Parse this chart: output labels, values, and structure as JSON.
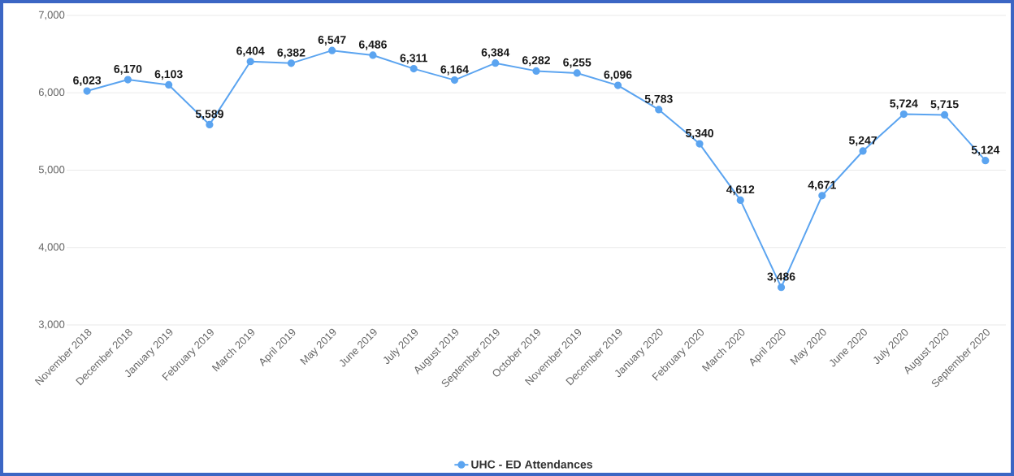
{
  "chart_data": {
    "type": "line",
    "categories": [
      "November 2018",
      "December 2018",
      "January 2019",
      "February 2019",
      "March 2019",
      "April 2019",
      "May 2019",
      "June 2019",
      "July 2019",
      "August 2019",
      "September 2019",
      "October 2019",
      "November 2019",
      "December 2019",
      "January 2020",
      "February 2020",
      "March 2020",
      "April 2020",
      "May 2020",
      "June 2020",
      "July 2020",
      "August 2020",
      "September 2020"
    ],
    "series": [
      {
        "name": "UHC - ED Attendances",
        "color": "#5ba4f0",
        "values": [
          6023,
          6170,
          6103,
          5589,
          6404,
          6382,
          6547,
          6486,
          6311,
          6164,
          6384,
          6282,
          6255,
          6096,
          5783,
          5340,
          4612,
          3486,
          4671,
          5247,
          5724,
          5715,
          5124
        ],
        "value_labels": [
          "6,023",
          "6,170",
          "6,103",
          "5,589",
          "6,404",
          "6,382",
          "6,547",
          "6,486",
          "6,311",
          "6,164",
          "6,384",
          "6,282",
          "6,255",
          "6,096",
          "5,783",
          "5,340",
          "4,612",
          "3,486",
          "4,671",
          "5,247",
          "5,724",
          "5,715",
          "5,124"
        ]
      }
    ],
    "ylim": [
      3000,
      7000
    ],
    "yticks": [
      {
        "value": 3000,
        "label": "3,000"
      },
      {
        "value": 4000,
        "label": "4,000"
      },
      {
        "value": 5000,
        "label": "5,000"
      },
      {
        "value": 6000,
        "label": "6,000"
      },
      {
        "value": 7000,
        "label": "7,000"
      }
    ],
    "grid": "y",
    "legend": "bottom",
    "marker": "circle",
    "line_style": "solid"
  }
}
